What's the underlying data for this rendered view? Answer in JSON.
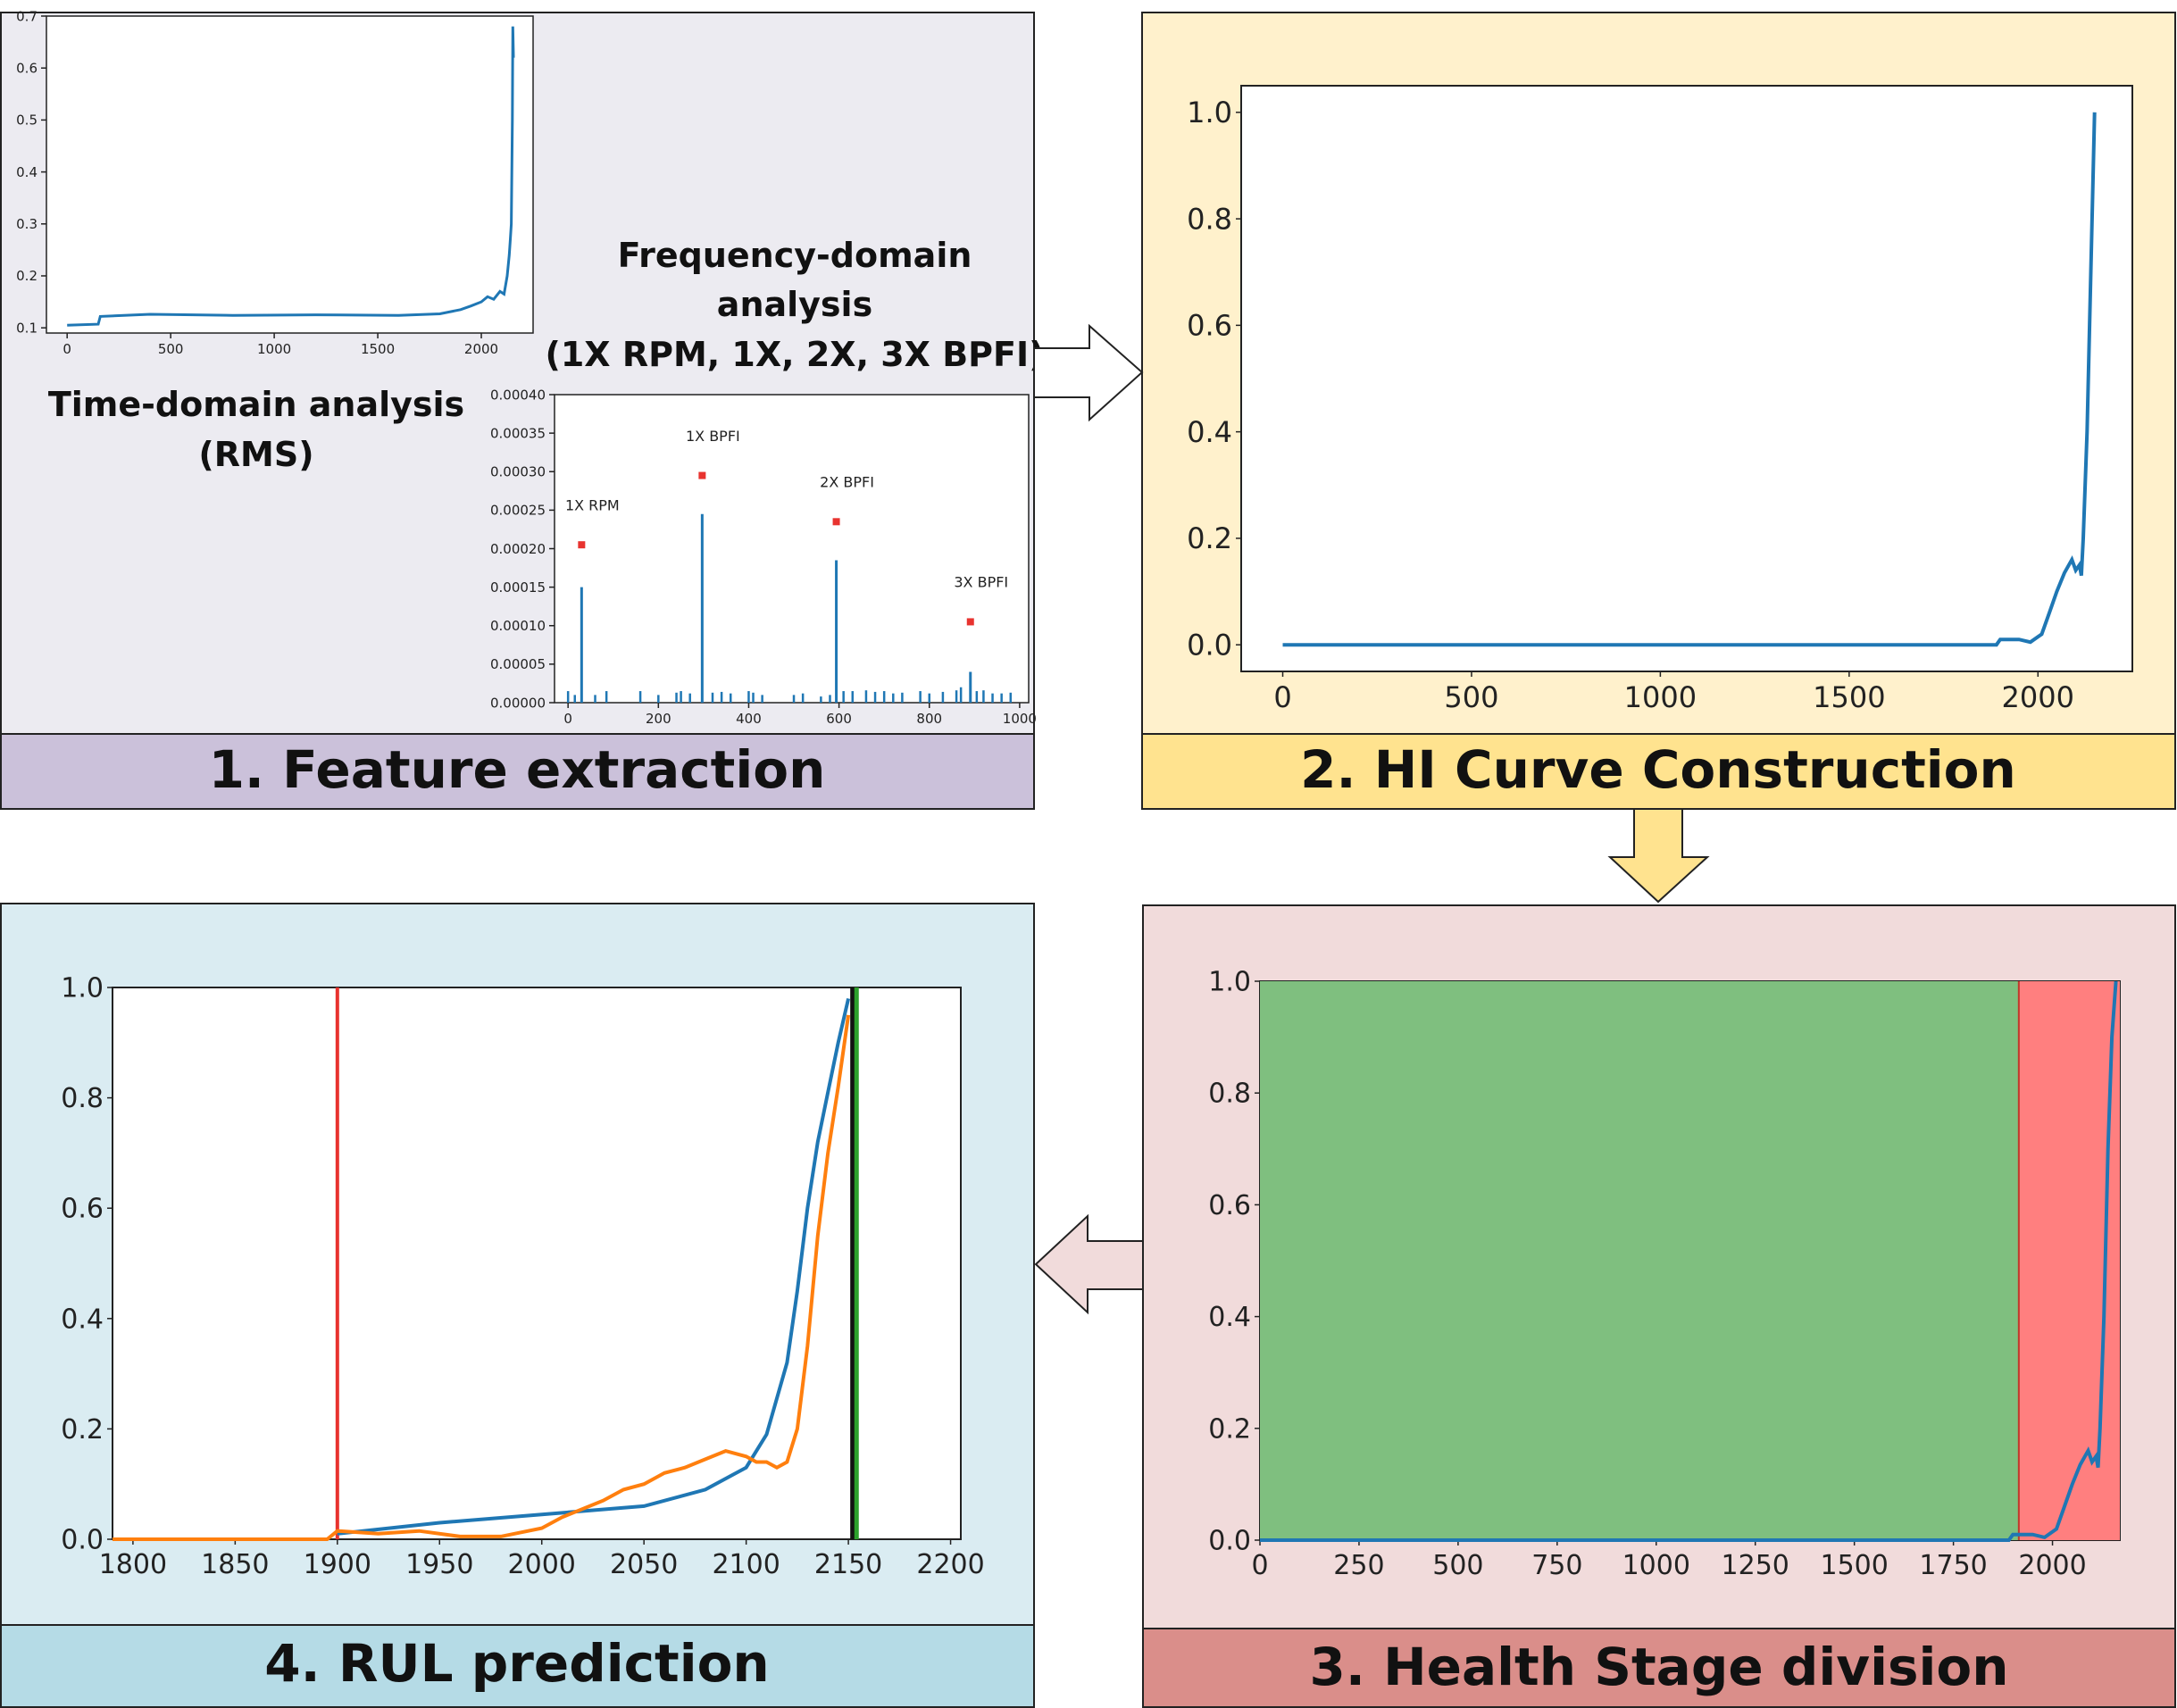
{
  "colors": {
    "panel1_bg": "#ecebf1",
    "panel1_title_bg": "#cbc1da",
    "panel2_bg": "#fff1cc",
    "panel2_title_bg": "#ffe38f",
    "panel3_bg": "#f1dbdb",
    "panel3_title_bg": "#da8e8a",
    "panel4_bg": "#daecf2",
    "panel4_title_bg": "#b5dbe6",
    "series_blue": "#1f77b4",
    "series_orange": "#ff7f0e",
    "threshold_red": "#e8332f",
    "end_black": "#111111",
    "end_green": "#2ca02c",
    "stage_healthy": "#7fbf7f",
    "stage_degraded": "#ff7f7f",
    "peak_marker": "#e8332f"
  },
  "panels": {
    "feature_extraction": {
      "title": "1. Feature extraction",
      "time_label_line1": "Time-domain analysis",
      "time_label_line2": "(RMS)",
      "freq_label_line1": "Frequency-domain",
      "freq_label_line2": "analysis",
      "freq_label_line3": "(1X RPM, 1X, 2X, 3X BPFI)"
    },
    "hi_curve": {
      "title": "2. HI Curve Construction"
    },
    "health_stage": {
      "title": "3. Health Stage division"
    },
    "rul_prediction": {
      "title": "4. RUL prediction"
    }
  },
  "chart_data": [
    {
      "id": "rms",
      "type": "line",
      "xlim": [
        -100,
        2250
      ],
      "ylim": [
        0.09,
        0.7
      ],
      "xticks": [
        0,
        500,
        1000,
        1500,
        2000
      ],
      "yticks": [
        0.1,
        0.2,
        0.3,
        0.4,
        0.5,
        0.6,
        0.7
      ],
      "series": [
        {
          "values_desc": "",
          "x": [
            0,
            150,
            160,
            400,
            800,
            1200,
            1600,
            1800,
            1900,
            1950,
            2000,
            2030,
            2060,
            2090,
            2110,
            2125,
            2135,
            2140,
            2145,
            2150,
            2152,
            2155
          ],
          "y": [
            0.105,
            0.107,
            0.122,
            0.126,
            0.124,
            0.125,
            0.124,
            0.127,
            0.135,
            0.142,
            0.15,
            0.16,
            0.155,
            0.17,
            0.165,
            0.2,
            0.24,
            0.27,
            0.3,
            0.5,
            0.68,
            0.62
          ]
        }
      ]
    },
    {
      "id": "spectrum",
      "type": "bar",
      "xlim": [
        -30,
        1020
      ],
      "ylim": [
        0,
        0.0004
      ],
      "xticks": [
        0,
        200,
        400,
        600,
        800,
        1000
      ],
      "yticks": [
        "0.00000",
        "0.00005",
        "0.00010",
        "0.00015",
        "0.00020",
        "0.00025",
        "0.00030",
        "0.00035",
        "0.00040"
      ],
      "peaks": [
        {
          "label": "1X RPM",
          "x": 30,
          "value": 0.00015,
          "marker": 0.000205
        },
        {
          "label": "1X BPFI",
          "x": 297,
          "value": 0.000245,
          "marker": 0.000295
        },
        {
          "label": "2X BPFI",
          "x": 594,
          "value": 0.000185,
          "marker": 0.000235
        },
        {
          "label": "3X BPFI",
          "x": 891,
          "value": 4e-05,
          "marker": 0.000105
        }
      ],
      "noise_x": [
        0,
        15,
        60,
        85,
        160,
        200,
        240,
        250,
        270,
        320,
        340,
        360,
        400,
        410,
        430,
        500,
        520,
        560,
        580,
        610,
        630,
        660,
        680,
        700,
        720,
        740,
        780,
        800,
        830,
        860,
        870,
        905,
        920,
        940,
        960,
        980
      ],
      "noise_y": [
        1.5e-05,
        1e-05,
        1e-05,
        1.5e-05,
        1.5e-05,
        1e-05,
        1.3e-05,
        1.5e-05,
        1.2e-05,
        1.3e-05,
        1.4e-05,
        1.2e-05,
        1.5e-05,
        1.3e-05,
        1e-05,
        1e-05,
        1.2e-05,
        8e-06,
        1e-05,
        1.5e-05,
        1.5e-05,
        1.6e-05,
        1.4e-05,
        1.5e-05,
        1.2e-05,
        1.3e-05,
        1.5e-05,
        1.2e-05,
        1.4e-05,
        1.6e-05,
        2e-05,
        1.5e-05,
        1.6e-05,
        1.2e-05,
        1.2e-05,
        1.3e-05
      ]
    },
    {
      "id": "hi",
      "type": "line",
      "xlim": [
        -110,
        2250
      ],
      "ylim": [
        -0.05,
        1.05
      ],
      "xticks": [
        0,
        500,
        1000,
        1500,
        2000
      ],
      "yticks": [
        0.0,
        0.2,
        0.4,
        0.6,
        0.8,
        1.0
      ],
      "ytick_labels": [
        "0.0",
        "0.2",
        "0.4",
        "0.6",
        "0.8",
        "1.0"
      ],
      "series": [
        {
          "x": [
            0,
            1890,
            1900,
            1950,
            1980,
            2010,
            2030,
            2050,
            2070,
            2090,
            2100,
            2110,
            2115,
            2120,
            2130,
            2140,
            2150
          ],
          "y": [
            0.0,
            0.0,
            0.01,
            0.01,
            0.005,
            0.02,
            0.06,
            0.1,
            0.135,
            0.16,
            0.14,
            0.15,
            0.13,
            0.2,
            0.4,
            0.7,
            1.0
          ]
        }
      ]
    },
    {
      "id": "stages",
      "type": "area",
      "xlim": [
        0,
        2170
      ],
      "ylim": [
        0,
        1.0
      ],
      "xticks": [
        0,
        250,
        500,
        750,
        1000,
        1250,
        1500,
        1750,
        2000
      ],
      "yticks": [
        0.0,
        0.2,
        0.4,
        0.6,
        0.8,
        1.0
      ],
      "ytick_labels": [
        "0.0",
        "0.2",
        "0.4",
        "0.6",
        "0.8",
        "1.0"
      ],
      "stage_boundary": 1915,
      "series": [
        {
          "x": [
            0,
            1890,
            1900,
            1950,
            1980,
            2010,
            2030,
            2050,
            2070,
            2090,
            2100,
            2110,
            2115,
            2120,
            2130,
            2140,
            2150,
            2160
          ],
          "y": [
            0.0,
            0.0,
            0.01,
            0.01,
            0.005,
            0.02,
            0.06,
            0.1,
            0.135,
            0.16,
            0.14,
            0.15,
            0.13,
            0.2,
            0.4,
            0.7,
            0.9,
            1.0
          ]
        }
      ]
    },
    {
      "id": "rul",
      "type": "line",
      "xlim": [
        1790,
        2205
      ],
      "ylim": [
        0,
        1.0
      ],
      "xticks": [
        1800,
        1850,
        1900,
        1950,
        2000,
        2050,
        2100,
        2150,
        2200
      ],
      "yticks": [
        0.0,
        0.2,
        0.4,
        0.6,
        0.8,
        1.0
      ],
      "ytick_labels": [
        "0.0",
        "0.2",
        "0.4",
        "0.6",
        "0.8",
        "1.0"
      ],
      "vlines": {
        "start": 1900,
        "end_black": 2152,
        "end_green": 2154
      },
      "series": [
        {
          "color": "blue",
          "x": [
            1900,
            1950,
            2000,
            2050,
            2080,
            2100,
            2110,
            2120,
            2125,
            2130,
            2135,
            2140,
            2145,
            2150
          ],
          "y": [
            0.01,
            0.03,
            0.045,
            0.06,
            0.09,
            0.13,
            0.19,
            0.32,
            0.45,
            0.6,
            0.72,
            0.81,
            0.9,
            0.98
          ]
        },
        {
          "color": "orange",
          "x": [
            1790,
            1895,
            1900,
            1920,
            1940,
            1960,
            1980,
            2000,
            2010,
            2030,
            2040,
            2050,
            2060,
            2070,
            2080,
            2090,
            2100,
            2105,
            2110,
            2115,
            2120,
            2125,
            2130,
            2135,
            2140,
            2145,
            2150
          ],
          "y": [
            0.0,
            0.0,
            0.015,
            0.01,
            0.015,
            0.005,
            0.005,
            0.02,
            0.04,
            0.07,
            0.09,
            0.1,
            0.12,
            0.13,
            0.145,
            0.16,
            0.15,
            0.14,
            0.14,
            0.13,
            0.14,
            0.2,
            0.35,
            0.55,
            0.7,
            0.82,
            0.95
          ]
        }
      ]
    }
  ]
}
